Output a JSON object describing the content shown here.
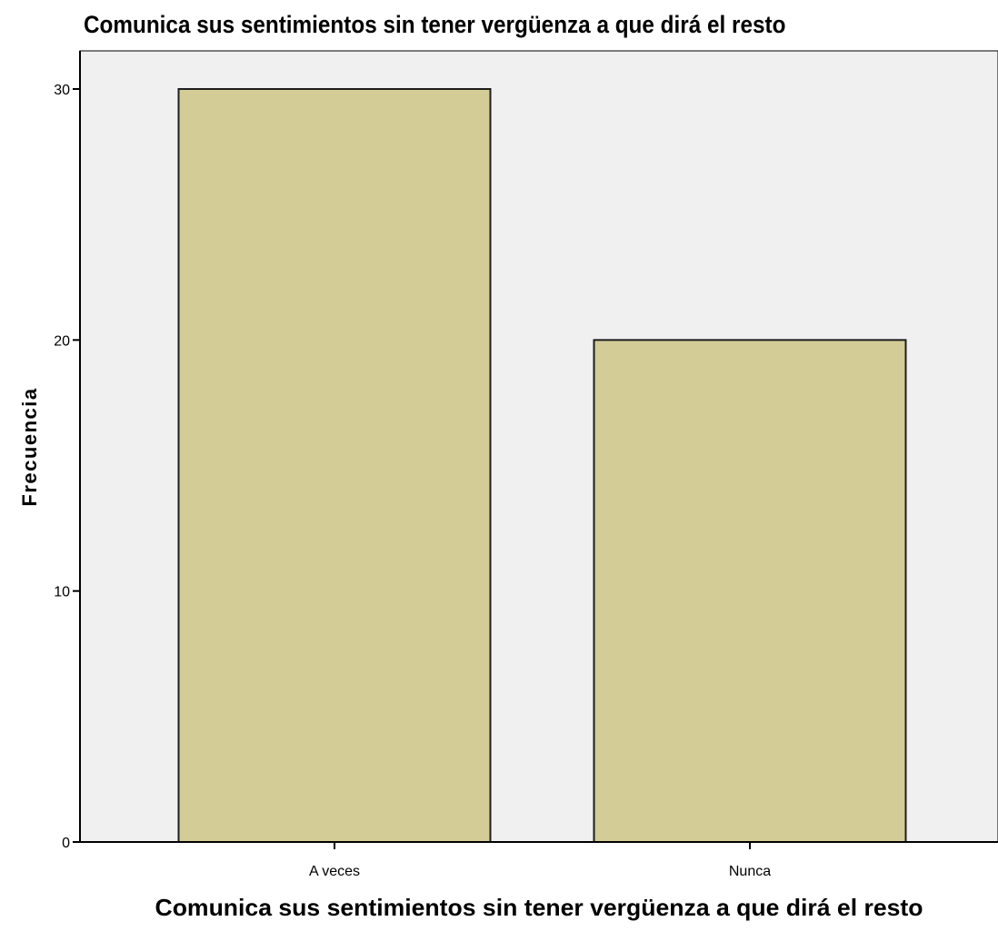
{
  "chart_data": {
    "type": "bar",
    "title": "Comunica sus sentimientos sin tener vergüenza a que dirá el resto",
    "xlabel": "Comunica sus sentimientos sin tener vergüenza a que dirá el resto",
    "ylabel": "Frecuencia",
    "categories": [
      "A veces",
      "Nunca"
    ],
    "values": [
      30,
      20
    ],
    "ylim": [
      0,
      30
    ],
    "yticks": [
      0,
      10,
      20,
      30
    ],
    "grid": false,
    "legend": "none",
    "colors": {
      "plot_background": "#f0f0f0",
      "bar_fill": "#d3cc96",
      "bar_stroke": "#1e1e1e",
      "axis": "#000000"
    }
  }
}
